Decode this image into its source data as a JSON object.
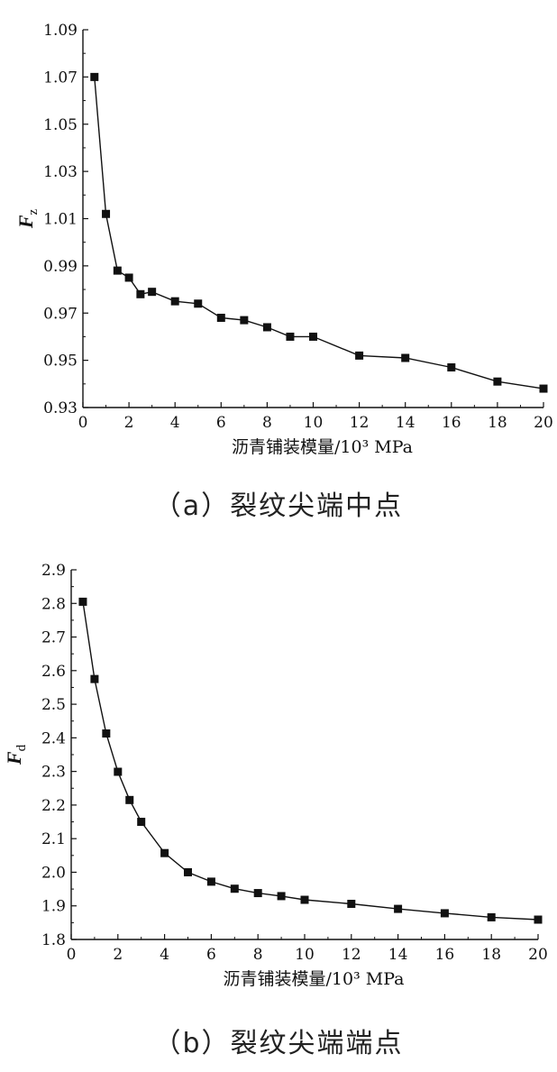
{
  "chart_data": [
    {
      "type": "line",
      "ylabel_main": "F",
      "ylabel_sub": "z",
      "xlabel": "沥青铺装模量/10³ MPa",
      "caption": "（a）裂纹尖端中点",
      "xlim": [
        0,
        20
      ],
      "ylim": [
        0.93,
        1.09
      ],
      "xticks": [
        0,
        2,
        4,
        6,
        8,
        10,
        12,
        14,
        16,
        18,
        20
      ],
      "yticks": [
        0.93,
        0.95,
        0.97,
        0.99,
        1.01,
        1.03,
        1.05,
        1.07,
        1.09
      ],
      "ytick_labels": [
        "0.93",
        "0.95",
        "0.97",
        "0.99",
        "1.01",
        "1.03",
        "1.05",
        "1.07",
        "1.09"
      ],
      "marker": "square",
      "series": [
        {
          "x": [
            0.5,
            1,
            1.5,
            2,
            2.5,
            3,
            4,
            5,
            6,
            7,
            8,
            9,
            10,
            12,
            14,
            16,
            18,
            20
          ],
          "y": [
            1.07,
            1.012,
            0.988,
            0.985,
            0.978,
            0.979,
            0.975,
            0.974,
            0.968,
            0.967,
            0.964,
            0.96,
            0.96,
            0.952,
            0.951,
            0.947,
            0.941,
            0.938
          ]
        }
      ]
    },
    {
      "type": "line",
      "ylabel_main": "F",
      "ylabel_sub": "d",
      "xlabel": "沥青铺装模量/10³ MPa",
      "caption": "（b）裂纹尖端端点",
      "xlim": [
        0,
        20
      ],
      "ylim": [
        1.8,
        2.9
      ],
      "xticks": [
        0,
        2,
        4,
        6,
        8,
        10,
        12,
        14,
        16,
        18,
        20
      ],
      "yticks": [
        1.8,
        1.9,
        2.0,
        2.1,
        2.2,
        2.3,
        2.4,
        2.5,
        2.6,
        2.7,
        2.8,
        2.9
      ],
      "ytick_labels": [
        "1.8",
        "1.9",
        "2.0",
        "2.1",
        "2.2",
        "2.3",
        "2.4",
        "2.5",
        "2.6",
        "2.7",
        "2.8",
        "2.9"
      ],
      "marker": "square",
      "series": [
        {
          "x": [
            0.5,
            1,
            1.5,
            2,
            2.5,
            3,
            4,
            5,
            6,
            7,
            8,
            9,
            10,
            12,
            14,
            16,
            18,
            20
          ],
          "y": [
            2.805,
            2.575,
            2.413,
            2.299,
            2.215,
            2.15,
            2.057,
            2.0,
            1.972,
            1.951,
            1.938,
            1.929,
            1.918,
            1.906,
            1.891,
            1.878,
            1.866,
            1.859
          ]
        }
      ]
    }
  ]
}
